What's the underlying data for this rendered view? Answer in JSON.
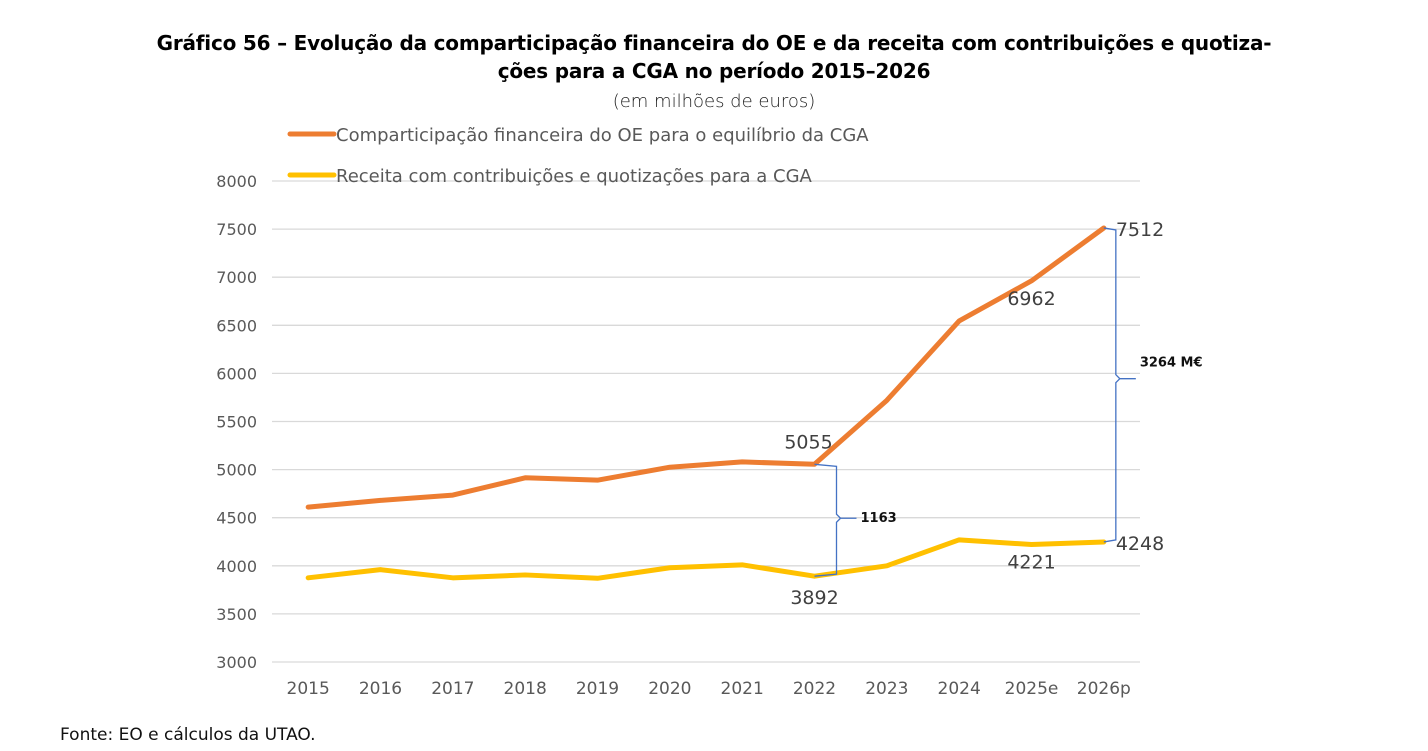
{
  "header": {
    "title_line1": "Gráfico 56 – Evolução da comparticipação financeira do OE e da receita com contribuições e quotiza-",
    "title_line2": "ções para a CGA no período 2015–2026",
    "subtitle": "(em milhões de euros)"
  },
  "footer": {
    "source": "Fonte: EO e cálculos da UTAO."
  },
  "colors": {
    "oe": "#ED7D31",
    "receita": "#FFC000",
    "bracket": "#4472C4",
    "grid": "#D9D9D9",
    "axis_text": "#595959"
  },
  "chart_data": {
    "type": "line",
    "title": "Gráfico 56 – Evolução da comparticipação financeira do OE e da receita com contribuições e quotizações para a CGA no período 2015–2026",
    "subtitle": "(em milhões de euros)",
    "xlabel": "",
    "ylabel": "",
    "ylim": [
      3000,
      8000
    ],
    "yticks": [
      3000,
      3500,
      4000,
      4500,
      5000,
      5500,
      6000,
      6500,
      7000,
      7500,
      8000
    ],
    "grid": true,
    "legend_position": "top-left",
    "categories": [
      "2015",
      "2016",
      "2017",
      "2018",
      "2019",
      "2020",
      "2021",
      "2022",
      "2023",
      "2024",
      "2025e",
      "2026p"
    ],
    "series": [
      {
        "name": "Comparticipação financeira do OE para o equilíbrio da CGA",
        "color": "#ED7D31",
        "values": [
          4610,
          4680,
          4735,
          4915,
          4890,
          5025,
          5080,
          5055,
          5720,
          6545,
          6962,
          7512
        ],
        "labels": {
          "7": "5055",
          "10": "6962",
          "11": "7512"
        }
      },
      {
        "name": "Receita com contribuições e quotizações para a CGA",
        "color": "#FFC000",
        "values": [
          3875,
          3960,
          3875,
          3905,
          3870,
          3980,
          4010,
          3892,
          4000,
          4270,
          4221,
          4248
        ],
        "labels": {
          "7": "3892",
          "10": "4221",
          "11": "4248"
        }
      }
    ],
    "annotations": [
      {
        "type": "bracket",
        "category": "2022",
        "from": 3892,
        "to": 5055,
        "label": "1163"
      },
      {
        "type": "bracket",
        "category": "2026p",
        "from": 4248,
        "to": 7512,
        "label": "3264 M€"
      }
    ]
  }
}
